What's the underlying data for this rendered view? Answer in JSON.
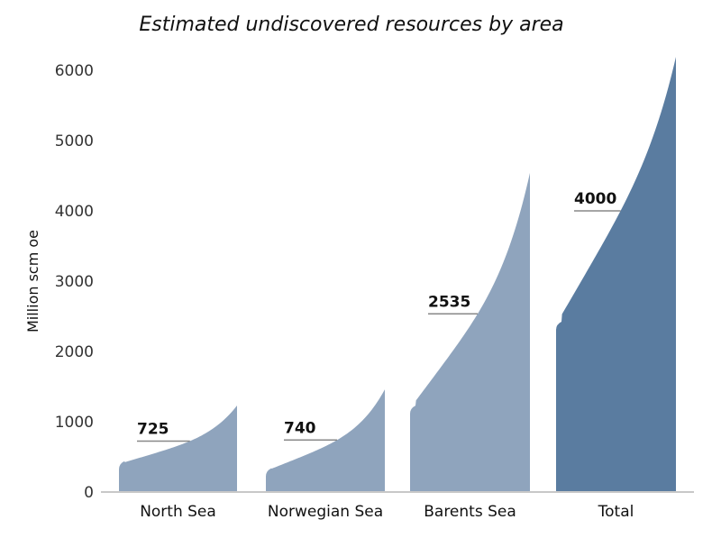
{
  "chart_data": {
    "type": "area",
    "title": "Estimated undiscovered resources by area",
    "xlabel": "",
    "ylabel": "Million scm oe",
    "ylim": [
      0,
      6000
    ],
    "yticks": [
      "0",
      "1000",
      "2000",
      "3000",
      "4000",
      "5000",
      "6000"
    ],
    "ytick_values": [
      0,
      1000,
      2000,
      3000,
      4000,
      5000,
      6000
    ],
    "grid": false,
    "categories": [
      "North Sea",
      "Norwegian Sea",
      "Barents Sea",
      "Total"
    ],
    "series": [
      {
        "name": "North Sea",
        "low": 400,
        "high": 1230,
        "expected": 725,
        "expected_label": "725",
        "color": "#8fa4bd"
      },
      {
        "name": "Norwegian Sea",
        "low": 300,
        "high": 1460,
        "expected": 740,
        "expected_label": "740",
        "color": "#8fa4bd"
      },
      {
        "name": "Barents Sea",
        "low": 1190,
        "high": 4540,
        "expected": 2535,
        "expected_label": "2535",
        "color": "#8fa4bd"
      },
      {
        "name": "Total",
        "low": 2385,
        "high": 6190,
        "expected": 4000,
        "expected_label": "4000",
        "color": "#5a7ca0"
      }
    ]
  }
}
